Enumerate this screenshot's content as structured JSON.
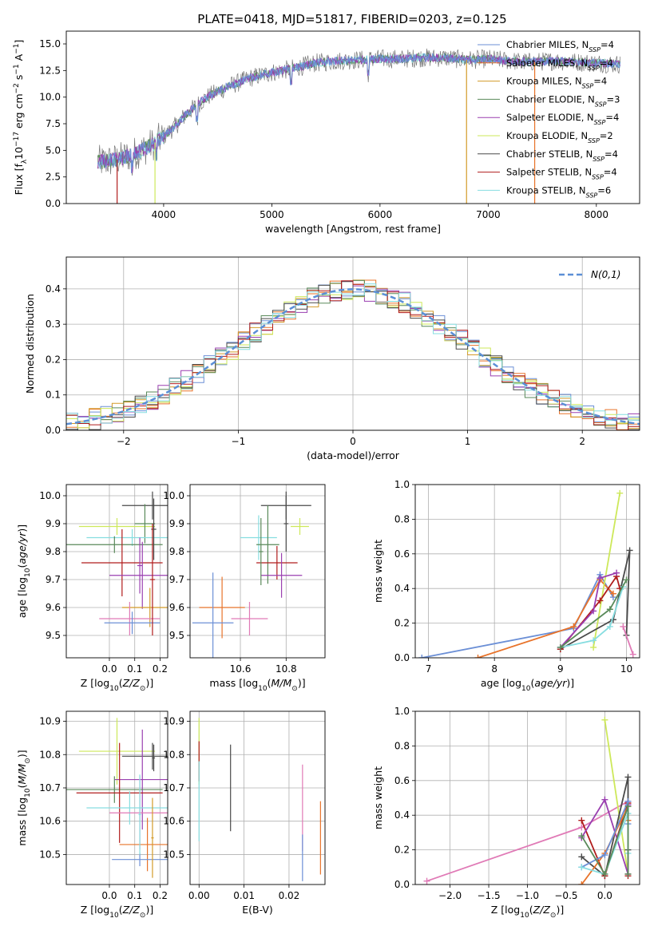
{
  "figure": {
    "title": "PLATE=0418, MJD=51817, FIBERID=0203, z=0.125"
  },
  "colors": {
    "Chabrier MILES": "#6b8fd6",
    "Salpeter MILES": "#e8732a",
    "Kroupa MILES": "#d39a28",
    "Chabrier ELODIE": "#5a8a5a",
    "Salpeter ELODIE": "#9a3fb0",
    "Kroupa ELODIE": "#cde85a",
    "Chabrier STELIB": "#4a4a4a",
    "Salpeter STELIB": "#b01c1c",
    "Kroupa STELIB": "#86dde0",
    "data": "#777777",
    "kroupa_stelib_pink": "#e07ab6"
  },
  "chart_data": [
    {
      "id": "spectrum",
      "type": "line",
      "xlabel": "wavelength [Angstrom, rest frame]",
      "ylabel": "Flux [f_λ10^-17 erg cm^-2 s^-1 A^-1]",
      "xlim": [
        3100,
        8400
      ],
      "ylim": [
        0,
        16.2
      ],
      "xticks": [
        4000,
        5000,
        6000,
        7000,
        8000
      ],
      "yticks": [
        0.0,
        2.5,
        5.0,
        7.5,
        10.0,
        12.5,
        15.0
      ],
      "continuum": {
        "x": [
          3400,
          3500,
          3600,
          3700,
          3800,
          3900,
          4000,
          4100,
          4200,
          4300,
          4400,
          4600,
          4800,
          5000,
          5200,
          5400,
          5600,
          5800,
          6000,
          6200,
          6400,
          6600,
          6800,
          7000,
          7200,
          7400,
          7600,
          7800,
          8000,
          8200
        ],
        "y": [
          3.9,
          4.0,
          4.2,
          4.6,
          5.0,
          5.6,
          6.3,
          7.2,
          8.3,
          9.2,
          10.0,
          11.0,
          11.8,
          12.3,
          12.7,
          13.2,
          13.4,
          13.5,
          13.6,
          13.6,
          13.7,
          13.7,
          13.5,
          13.6,
          13.4,
          13.3,
          13.4,
          13.3,
          13.2,
          13.1
        ]
      },
      "legend": [
        {
          "label": "Chabrier MILES, N_SSP=4",
          "color_key": "Chabrier MILES"
        },
        {
          "label": "Salpeter MILES, N_SSP=4",
          "color_key": "Salpeter MILES"
        },
        {
          "label": "Kroupa MILES, N_SSP=4",
          "color_key": "Kroupa MILES"
        },
        {
          "label": "Chabrier ELODIE, N_SSP=3",
          "color_key": "Chabrier ELODIE"
        },
        {
          "label": "Salpeter ELODIE, N_SSP=4",
          "color_key": "Salpeter ELODIE"
        },
        {
          "label": "Kroupa ELODIE, N_SSP=2",
          "color_key": "Kroupa ELODIE"
        },
        {
          "label": "Chabrier STELIB, N_SSP=4",
          "color_key": "Chabrier STELIB"
        },
        {
          "label": "Salpeter STELIB, N_SSP=4",
          "color_key": "Salpeter STELIB"
        },
        {
          "label": "Kroupa STELIB, N_SSP=6",
          "color_key": "Kroupa STELIB"
        }
      ]
    },
    {
      "id": "residuals",
      "type": "step",
      "xlabel": "(data-model)/error",
      "ylabel": "Normed distribution",
      "xlim": [
        -2.5,
        2.5
      ],
      "ylim": [
        0,
        0.49
      ],
      "xticks": [
        -2,
        -1,
        0,
        1,
        2
      ],
      "yticks": [
        0.0,
        0.1,
        0.2,
        0.3,
        0.4
      ],
      "reference_label": "N(0,1)",
      "reference_color": "#5b8fd6"
    },
    {
      "id": "age_vs_Z",
      "type": "errorbar",
      "xlabel": "Z [log10(Z/Z⊙)]",
      "ylabel": "age [log10(age/yr)]",
      "xlim": [
        -0.17,
        0.23
      ],
      "ylim": [
        9.42,
        10.04
      ],
      "xticks": [
        0.0,
        0.1,
        0.2
      ],
      "yticks": [
        9.5,
        9.6,
        9.7,
        9.8,
        9.9,
        10.0
      ],
      "points": [
        {
          "x": 0.17,
          "xerr": 0.12,
          "y": 9.965,
          "yerr": 0.05,
          "color_key": "Chabrier STELIB"
        },
        {
          "x": 0.03,
          "xerr": 0.15,
          "y": 9.89,
          "yerr": 0.03,
          "color_key": "Kroupa ELODIE"
        },
        {
          "x": 0.14,
          "xerr": 0.04,
          "y": 9.9,
          "yerr": 0.07,
          "color_key": "Chabrier ELODIE"
        },
        {
          "x": 0.09,
          "xerr": 0.18,
          "y": 9.85,
          "yerr": 0.03,
          "color_key": "Kroupa STELIB"
        },
        {
          "x": 0.02,
          "xerr": 0.19,
          "y": 9.825,
          "yerr": 0.03,
          "color_key": "Chabrier ELODIE"
        },
        {
          "x": 0.05,
          "xerr": 0.16,
          "y": 9.76,
          "yerr": 0.12,
          "color_key": "Salpeter STELIB"
        },
        {
          "x": 0.13,
          "xerr": 0.13,
          "y": 9.715,
          "yerr": 0.12,
          "color_key": "Salpeter ELODIE"
        },
        {
          "x": 0.16,
          "xerr": 0.11,
          "y": 9.6,
          "yerr": 0.07,
          "color_key": "Kroupa MILES"
        },
        {
          "x": 0.08,
          "xerr": 0.12,
          "y": 9.56,
          "yerr": 0.06,
          "color_key": "kroupa_stelib_pink"
        },
        {
          "x": 0.09,
          "xerr": 0.11,
          "y": 9.545,
          "yerr": 0.04,
          "color_key": "Chabrier MILES"
        },
        {
          "x": 0.175,
          "xerr": 0.01,
          "y": 9.88,
          "yerr": 0.11,
          "color_key": "Chabrier STELIB"
        },
        {
          "x": 0.17,
          "xerr": 0.01,
          "y": 9.7,
          "yerr": 0.2,
          "color_key": "Salpeter STELIB"
        },
        {
          "x": 0.12,
          "xerr": 0.01,
          "y": 9.75,
          "yerr": 0.1,
          "color_key": "Salpeter ELODIE"
        }
      ]
    },
    {
      "id": "age_vs_mass",
      "type": "errorbar",
      "xlabel": "mass [log10(M/M⊙)]",
      "ylabel": "",
      "xlim": [
        10.38,
        10.97
      ],
      "ylim": [
        9.42,
        10.04
      ],
      "xticks": [
        10.6,
        10.8
      ],
      "yticks": [
        9.5,
        9.6,
        9.7,
        9.8,
        9.9,
        10.0
      ],
      "points": [
        {
          "x": 10.8,
          "xerr": 0.11,
          "y": 9.965,
          "yerr": 0.05,
          "color_key": "Chabrier STELIB"
        },
        {
          "x": 10.86,
          "xerr": 0.04,
          "y": 9.89,
          "yerr": 0.03,
          "color_key": "Kroupa ELODIE"
        },
        {
          "x": 10.68,
          "xerr": 0.08,
          "y": 9.85,
          "yerr": 0.08,
          "color_key": "Kroupa STELIB"
        },
        {
          "x": 10.72,
          "xerr": 0.05,
          "y": 9.825,
          "yerr": 0.14,
          "color_key": "Chabrier ELODIE"
        },
        {
          "x": 10.76,
          "xerr": 0.09,
          "y": 9.76,
          "yerr": 0.06,
          "color_key": "Salpeter STELIB"
        },
        {
          "x": 10.78,
          "xerr": 0.09,
          "y": 9.715,
          "yerr": 0.08,
          "color_key": "Salpeter ELODIE"
        },
        {
          "x": 10.52,
          "xerr": 0.1,
          "y": 9.6,
          "yerr": 0.11,
          "color_key": "Salpeter MILES"
        },
        {
          "x": 10.64,
          "xerr": 0.08,
          "y": 9.56,
          "yerr": 0.06,
          "color_key": "kroupa_stelib_pink"
        },
        {
          "x": 10.48,
          "xerr": 0.09,
          "y": 9.545,
          "yerr": 0.18,
          "color_key": "Chabrier MILES"
        },
        {
          "x": 10.8,
          "xerr": 0.01,
          "y": 9.9,
          "yerr": 0.1,
          "color_key": "Chabrier STELIB"
        },
        {
          "x": 10.69,
          "xerr": 0.01,
          "y": 9.8,
          "yerr": 0.12,
          "color_key": "Chabrier ELODIE"
        }
      ]
    },
    {
      "id": "weight_vs_age",
      "type": "line",
      "xlabel": "age [log10(age/yr)]",
      "ylabel": "mass weight",
      "xlim": [
        6.8,
        10.2
      ],
      "ylim": [
        0,
        1
      ],
      "xticks": [
        7,
        8,
        9,
        10
      ],
      "yticks": [
        0.0,
        0.2,
        0.4,
        0.6,
        0.8,
        1.0
      ],
      "series": [
        {
          "color_key": "Chabrier MILES",
          "x": [
            6.9,
            9.2,
            9.6,
            9.8
          ],
          "y": [
            0.0,
            0.17,
            0.48,
            0.35
          ]
        },
        {
          "color_key": "Salpeter MILES",
          "x": [
            7.75,
            9.2,
            9.6,
            9.8
          ],
          "y": [
            0.0,
            0.18,
            0.45,
            0.37
          ]
        },
        {
          "color_key": "Kroupa ELODIE",
          "x": [
            9.5,
            9.9
          ],
          "y": [
            0.06,
            0.95
          ]
        },
        {
          "color_key": "Chabrier STELIB",
          "x": [
            9.0,
            9.8,
            10.05,
            10.0
          ],
          "y": [
            0.05,
            0.22,
            0.62,
            0.13
          ]
        },
        {
          "color_key": "Salpeter STELIB",
          "x": [
            9.0,
            9.6,
            9.85,
            9.9
          ],
          "y": [
            0.05,
            0.33,
            0.47,
            0.4
          ]
        },
        {
          "color_key": "Salpeter ELODIE",
          "x": [
            9.0,
            9.5,
            9.6,
            9.85
          ],
          "y": [
            0.06,
            0.27,
            0.46,
            0.49
          ]
        },
        {
          "color_key": "Kroupa STELIB",
          "x": [
            9.0,
            9.5,
            9.75,
            9.95
          ],
          "y": [
            0.06,
            0.1,
            0.18,
            0.41
          ]
        },
        {
          "color_key": "Chabrier ELODIE",
          "x": [
            9.0,
            9.75,
            10.0
          ],
          "y": [
            0.06,
            0.28,
            0.45
          ]
        },
        {
          "color_key": "kroupa_stelib_pink",
          "x": [
            9.95,
            10.1
          ],
          "y": [
            0.18,
            0.02
          ]
        }
      ]
    },
    {
      "id": "mass_vs_Z",
      "type": "errorbar",
      "xlabel": "Z [log10(Z/Z⊙)]",
      "ylabel": "mass [log10(M/M⊙)]",
      "xlim": [
        -0.17,
        0.23
      ],
      "ylim": [
        10.41,
        10.93
      ],
      "xticks": [
        0.0,
        0.1,
        0.2
      ],
      "yticks": [
        10.5,
        10.6,
        10.7,
        10.8,
        10.9
      ],
      "points": [
        {
          "x": 0.03,
          "xerr": 0.15,
          "y": 10.81,
          "yerr": 0.1,
          "color_key": "Kroupa ELODIE"
        },
        {
          "x": 0.17,
          "xerr": 0.12,
          "y": 10.795,
          "yerr": 0.04,
          "color_key": "Chabrier STELIB"
        },
        {
          "x": 0.13,
          "xerr": 0.11,
          "y": 10.725,
          "yerr": 0.15,
          "color_key": "Salpeter ELODIE"
        },
        {
          "x": 0.02,
          "xerr": 0.19,
          "y": 10.695,
          "yerr": 0.04,
          "color_key": "Chabrier ELODIE"
        },
        {
          "x": 0.04,
          "xerr": 0.17,
          "y": 10.685,
          "yerr": 0.15,
          "color_key": "Salpeter STELIB"
        },
        {
          "x": 0.08,
          "xerr": 0.17,
          "y": 10.64,
          "yerr": 0.05,
          "color_key": "Kroupa STELIB"
        },
        {
          "x": 0.12,
          "xerr": 0.12,
          "y": 10.625,
          "yerr": 0.11,
          "color_key": "kroupa_stelib_pink"
        },
        {
          "x": 0.15,
          "xerr": 0.11,
          "y": 10.53,
          "yerr": 0.08,
          "color_key": "Salpeter MILES"
        },
        {
          "x": 0.12,
          "xerr": 0.11,
          "y": 10.485,
          "yerr": 0.02,
          "color_key": "Chabrier MILES"
        },
        {
          "x": 0.175,
          "xerr": 0.005,
          "y": 10.79,
          "yerr": 0.04,
          "color_key": "Chabrier STELIB"
        },
        {
          "x": 0.12,
          "xerr": 0.005,
          "y": 10.62,
          "yerr": 0.12,
          "color_key": "Kroupa STELIB"
        },
        {
          "x": 0.17,
          "xerr": 0.005,
          "y": 10.55,
          "yerr": 0.12,
          "color_key": "Kroupa MILES"
        }
      ]
    },
    {
      "id": "mass_vs_ebv",
      "type": "errorbar",
      "xlabel": "E(B-V)",
      "ylabel": "",
      "xlim": [
        -0.002,
        0.028
      ],
      "ylim": [
        10.41,
        10.93
      ],
      "xticks": [
        0.0,
        0.01,
        0.02
      ],
      "xticklabels": [
        "0.00",
        "0.01",
        "0.02"
      ],
      "yticks": [
        10.5,
        10.6,
        10.7,
        10.8,
        10.9
      ],
      "points": [
        {
          "x": 0.0,
          "xerr": 0,
          "y": 10.81,
          "yerr": 0.1,
          "color_key": "Kroupa ELODIE"
        },
        {
          "x": 0.0,
          "xerr": 0,
          "y": 10.78,
          "yerr": 0.06,
          "color_key": "Salpeter STELIB"
        },
        {
          "x": 0.0,
          "xerr": 0,
          "y": 10.66,
          "yerr": 0.12,
          "color_key": "Kroupa STELIB"
        },
        {
          "x": 0.007,
          "xerr": 0,
          "y": 10.7,
          "yerr": 0.13,
          "color_key": "Chabrier STELIB"
        },
        {
          "x": 0.023,
          "xerr": 0,
          "y": 10.64,
          "yerr": 0.13,
          "color_key": "kroupa_stelib_pink"
        },
        {
          "x": 0.023,
          "xerr": 0,
          "y": 10.49,
          "yerr": 0.07,
          "color_key": "Chabrier MILES"
        },
        {
          "x": 0.027,
          "xerr": 0,
          "y": 10.55,
          "yerr": 0.11,
          "color_key": "Salpeter MILES"
        }
      ]
    },
    {
      "id": "weight_vs_Z",
      "type": "line",
      "xlabel": "Z [log10(Z/Z⊙)]",
      "ylabel": "mass weight",
      "xlim": [
        -2.45,
        0.45
      ],
      "ylim": [
        0,
        1
      ],
      "xticks": [
        -2.0,
        -1.5,
        -1.0,
        -0.5,
        0.0
      ],
      "xticklabels": [
        "−2.0",
        "−1.5",
        "−1.0",
        "−0.5",
        "0.0"
      ],
      "yticks": [
        0.0,
        0.2,
        0.4,
        0.6,
        0.8,
        1.0
      ],
      "series": [
        {
          "color_key": "kroupa_stelib_pink",
          "x": [
            -2.3,
            -0.3,
            0.3
          ],
          "y": [
            0.02,
            0.33,
            0.48
          ]
        },
        {
          "color_key": "Kroupa ELODIE",
          "x": [
            0.0,
            0.3
          ],
          "y": [
            0.95,
            0.06
          ]
        },
        {
          "color_key": "Chabrier STELIB",
          "x": [
            -0.3,
            0.0,
            0.3,
            0.3
          ],
          "y": [
            0.16,
            0.05,
            0.62,
            0.2
          ]
        },
        {
          "color_key": "Salpeter STELIB",
          "x": [
            -0.3,
            0.0,
            0.3,
            0.3
          ],
          "y": [
            0.37,
            0.05,
            0.47,
            0.05
          ]
        },
        {
          "color_key": "Salpeter ELODIE",
          "x": [
            -0.3,
            0.0,
            0.3,
            0.3
          ],
          "y": [
            0.27,
            0.49,
            0.06,
            0.46
          ]
        },
        {
          "color_key": "Salpeter MILES",
          "x": [
            -0.3,
            0.0,
            0.3,
            0.3
          ],
          "y": [
            0.0,
            0.18,
            0.45,
            0.37
          ]
        },
        {
          "color_key": "Chabrier MILES",
          "x": [
            -0.3,
            0.0,
            0.3,
            0.3
          ],
          "y": [
            0.1,
            0.17,
            0.48,
            0.35
          ]
        },
        {
          "color_key": "Kroupa STELIB",
          "x": [
            -0.3,
            0.0,
            0.3,
            0.3
          ],
          "y": [
            0.1,
            0.06,
            0.41,
            0.18
          ]
        },
        {
          "color_key": "Chabrier ELODIE",
          "x": [
            -0.3,
            0.0,
            0.3,
            0.3
          ],
          "y": [
            0.28,
            0.06,
            0.45,
            0.06
          ]
        }
      ]
    }
  ]
}
